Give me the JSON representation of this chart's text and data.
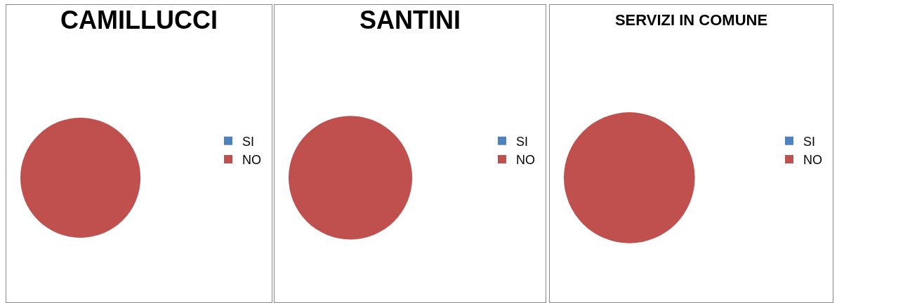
{
  "chart_data": [
    {
      "type": "pie",
      "title": "CAMILLUCCI",
      "categories": [
        "SI",
        "NO"
      ],
      "values": [
        0,
        100
      ],
      "colors": [
        "#4f81bd",
        "#c0504d"
      ],
      "legend": "right"
    },
    {
      "type": "pie",
      "title": "SANTINI",
      "categories": [
        "SI",
        "NO"
      ],
      "values": [
        0,
        100
      ],
      "colors": [
        "#4f81bd",
        "#c0504d"
      ],
      "legend": "right"
    },
    {
      "type": "pie",
      "title": "SERVIZI IN COMUNE",
      "categories": [
        "SI",
        "NO"
      ],
      "values": [
        0,
        100
      ],
      "colors": [
        "#4f81bd",
        "#c0504d"
      ],
      "legend": "right"
    }
  ]
}
